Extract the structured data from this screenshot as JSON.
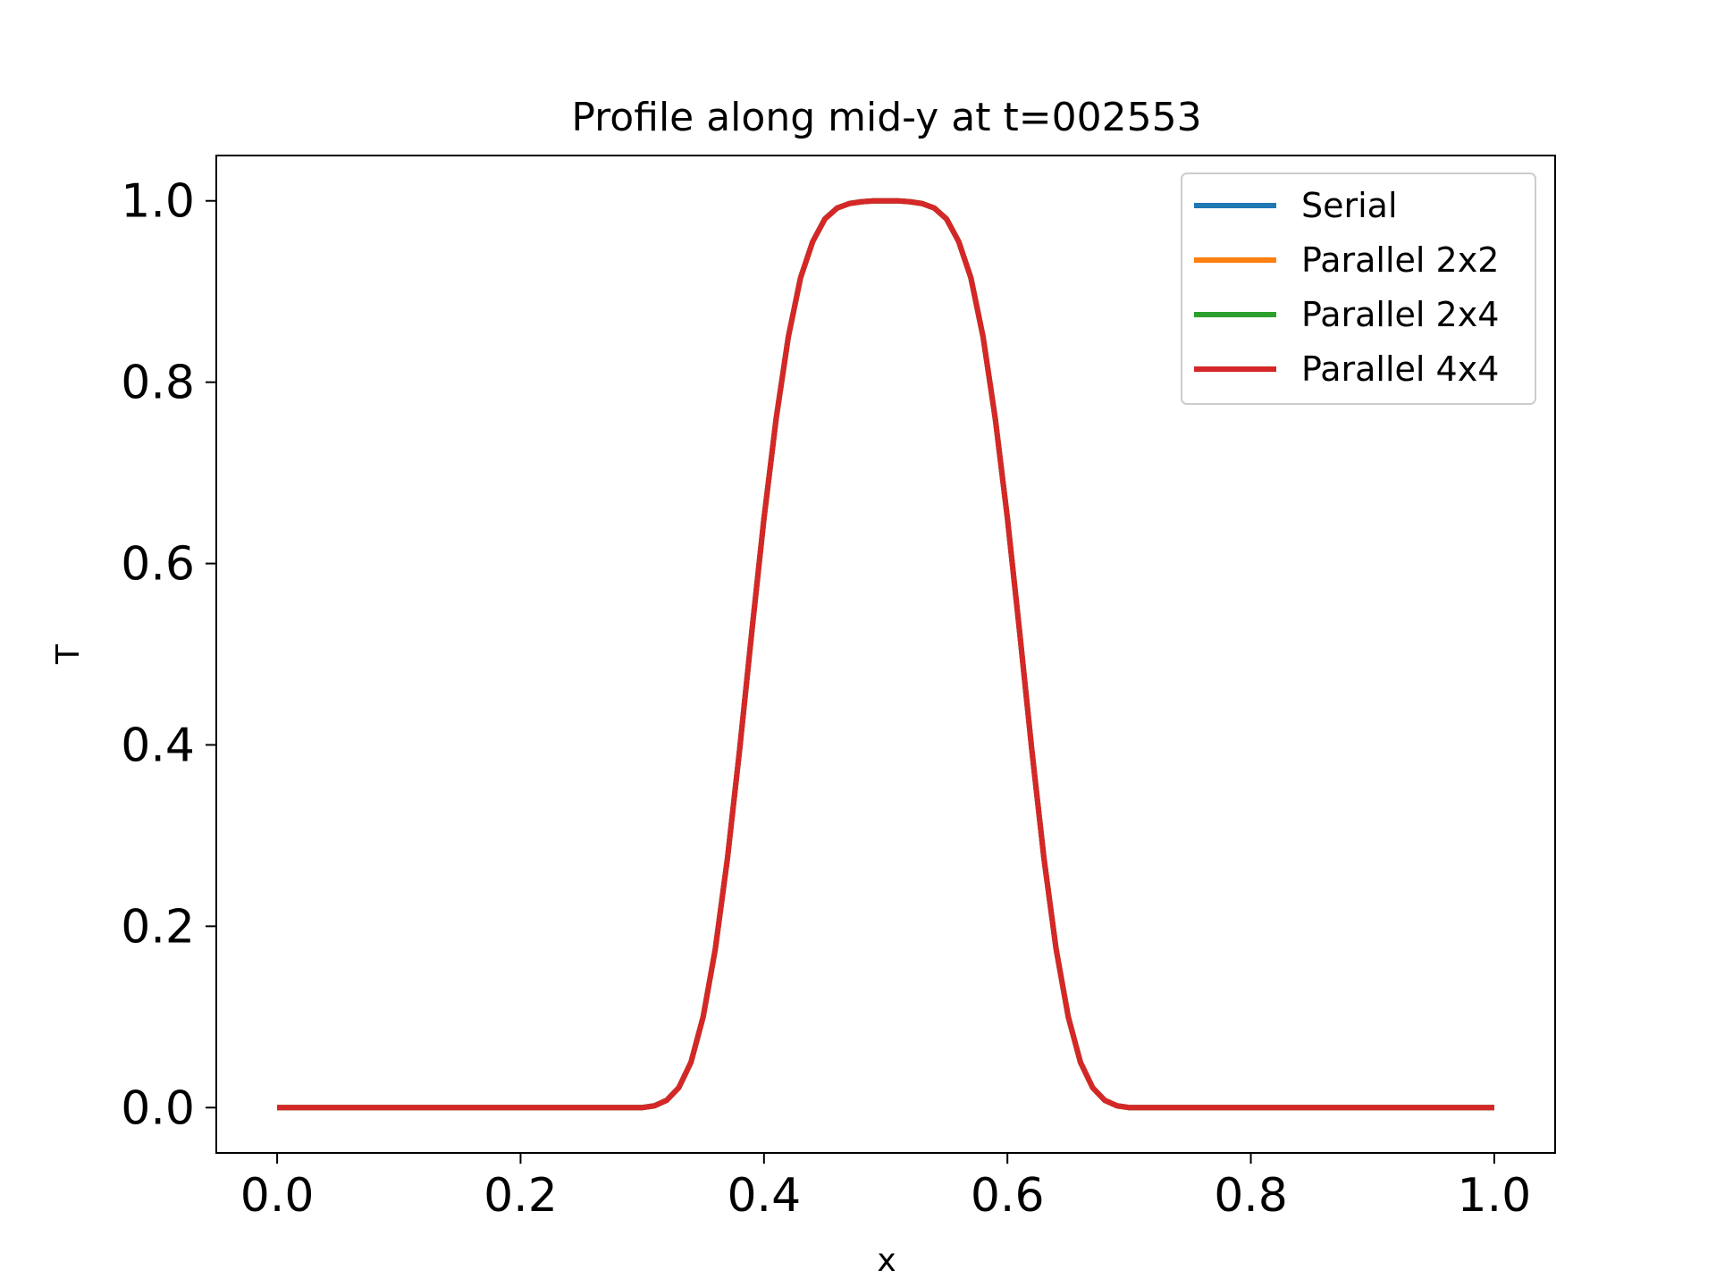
{
  "chart_data": {
    "type": "line",
    "title": "Profile along mid-y at t=002553",
    "xlabel": "x",
    "ylabel": "T",
    "xlim": [
      -0.05,
      1.05
    ],
    "ylim": [
      -0.05,
      1.05
    ],
    "xticks": [
      "0.0",
      "0.2",
      "0.4",
      "0.6",
      "0.8",
      "1.0"
    ],
    "yticks": [
      "0.0",
      "0.2",
      "0.4",
      "0.6",
      "0.8",
      "1.0"
    ],
    "grid": false,
    "legend_position": "top-right",
    "x": [
      0.0,
      0.05,
      0.1,
      0.15,
      0.2,
      0.25,
      0.3,
      0.31,
      0.32,
      0.33,
      0.34,
      0.35,
      0.36,
      0.37,
      0.38,
      0.39,
      0.4,
      0.41,
      0.42,
      0.43,
      0.44,
      0.45,
      0.46,
      0.47,
      0.48,
      0.49,
      0.5,
      0.51,
      0.52,
      0.53,
      0.54,
      0.55,
      0.56,
      0.57,
      0.58,
      0.59,
      0.6,
      0.61,
      0.62,
      0.63,
      0.64,
      0.65,
      0.66,
      0.67,
      0.68,
      0.69,
      0.7,
      0.75,
      0.8,
      0.85,
      0.9,
      0.95,
      1.0
    ],
    "series": [
      {
        "name": "Serial",
        "color": "#1f77b4",
        "values": [
          0.0,
          0.0,
          0.0,
          0.0,
          0.0,
          0.0,
          0.0,
          0.002,
          0.008,
          0.022,
          0.05,
          0.1,
          0.175,
          0.275,
          0.395,
          0.525,
          0.65,
          0.76,
          0.85,
          0.915,
          0.955,
          0.98,
          0.992,
          0.997,
          0.999,
          1.0,
          1.0,
          1.0,
          0.999,
          0.997,
          0.992,
          0.98,
          0.955,
          0.915,
          0.85,
          0.76,
          0.65,
          0.525,
          0.395,
          0.275,
          0.175,
          0.1,
          0.05,
          0.022,
          0.008,
          0.002,
          0.0,
          0.0,
          0.0,
          0.0,
          0.0,
          0.0,
          0.0
        ]
      },
      {
        "name": "Parallel 2x2",
        "color": "#ff7f0e",
        "values": [
          0.0,
          0.0,
          0.0,
          0.0,
          0.0,
          0.0,
          0.0,
          0.002,
          0.008,
          0.022,
          0.05,
          0.1,
          0.175,
          0.275,
          0.395,
          0.525,
          0.65,
          0.76,
          0.85,
          0.915,
          0.955,
          0.98,
          0.992,
          0.997,
          0.999,
          1.0,
          1.0,
          1.0,
          0.999,
          0.997,
          0.992,
          0.98,
          0.955,
          0.915,
          0.85,
          0.76,
          0.65,
          0.525,
          0.395,
          0.275,
          0.175,
          0.1,
          0.05,
          0.022,
          0.008,
          0.002,
          0.0,
          0.0,
          0.0,
          0.0,
          0.0,
          0.0,
          0.0
        ]
      },
      {
        "name": "Parallel 2x4",
        "color": "#2ca02c",
        "values": [
          0.0,
          0.0,
          0.0,
          0.0,
          0.0,
          0.0,
          0.0,
          0.002,
          0.008,
          0.022,
          0.05,
          0.1,
          0.175,
          0.275,
          0.395,
          0.525,
          0.65,
          0.76,
          0.85,
          0.915,
          0.955,
          0.98,
          0.992,
          0.997,
          0.999,
          1.0,
          1.0,
          1.0,
          0.999,
          0.997,
          0.992,
          0.98,
          0.955,
          0.915,
          0.85,
          0.76,
          0.65,
          0.525,
          0.395,
          0.275,
          0.175,
          0.1,
          0.05,
          0.022,
          0.008,
          0.002,
          0.0,
          0.0,
          0.0,
          0.0,
          0.0,
          0.0,
          0.0
        ]
      },
      {
        "name": "Parallel 4x4",
        "color": "#d62728",
        "values": [
          0.0,
          0.0,
          0.0,
          0.0,
          0.0,
          0.0,
          0.0,
          0.002,
          0.008,
          0.022,
          0.05,
          0.1,
          0.175,
          0.275,
          0.395,
          0.525,
          0.65,
          0.76,
          0.85,
          0.915,
          0.955,
          0.98,
          0.992,
          0.997,
          0.999,
          1.0,
          1.0,
          1.0,
          0.999,
          0.997,
          0.992,
          0.98,
          0.955,
          0.915,
          0.85,
          0.76,
          0.65,
          0.525,
          0.395,
          0.275,
          0.175,
          0.1,
          0.05,
          0.022,
          0.008,
          0.002,
          0.0,
          0.0,
          0.0,
          0.0,
          0.0,
          0.0,
          0.0
        ]
      }
    ]
  }
}
